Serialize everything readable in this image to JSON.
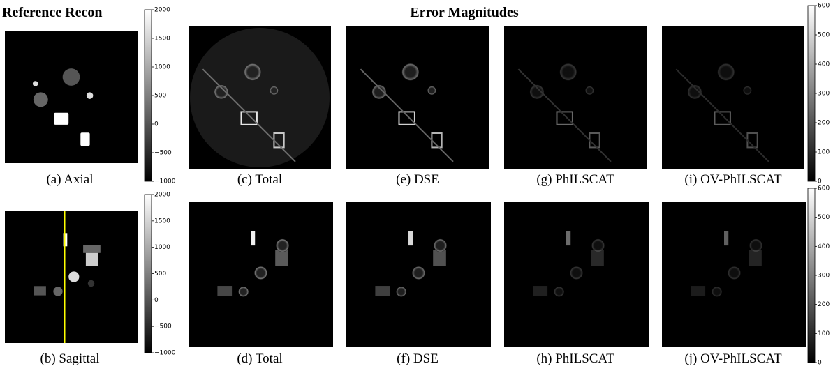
{
  "titles": {
    "reference": "Reference Recon",
    "error": "Error Magnitudes"
  },
  "panels": [
    {
      "label": "(a) Axial"
    },
    {
      "label": "(b) Sagittal"
    },
    {
      "label": "(c) Total"
    },
    {
      "label": "(d) Total"
    },
    {
      "label": "(e) DSE"
    },
    {
      "label": "(f) DSE"
    },
    {
      "label": "(g) PhILSCAT"
    },
    {
      "label": "(h) PhILSCAT"
    },
    {
      "label": "(i) OV-PhILSCAT"
    },
    {
      "label": "(j) OV-PhILSCAT"
    }
  ],
  "colorbars": [
    {
      "lim": [
        -1000,
        2000
      ],
      "ticks": [
        2000,
        1500,
        1000,
        500,
        0,
        {
          "value": -500,
          "label": "−500"
        },
        {
          "value": -1000,
          "label": "−1000"
        }
      ]
    },
    {
      "lim": [
        -1000,
        2000
      ],
      "ticks": [
        2000,
        1500,
        1000,
        500,
        0,
        {
          "value": -500,
          "label": "−500"
        },
        {
          "value": -1000,
          "label": "−1000"
        }
      ]
    },
    {
      "lim": [
        0,
        600
      ],
      "ticks": [
        600,
        500,
        400,
        300,
        200,
        100,
        0
      ]
    },
    {
      "lim": [
        0,
        600
      ],
      "ticks": [
        600,
        500,
        400,
        300,
        200,
        100,
        0
      ]
    }
  ]
}
